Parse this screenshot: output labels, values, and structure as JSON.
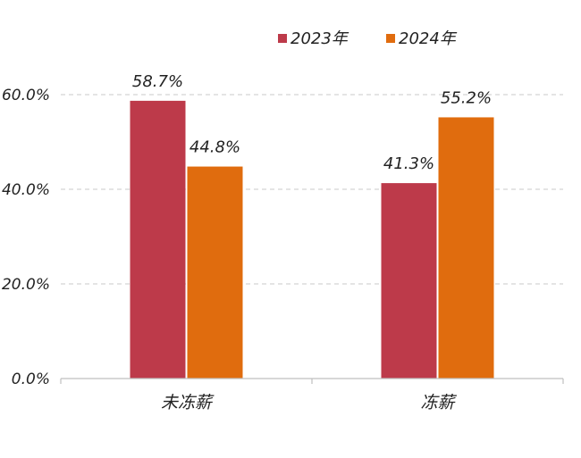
{
  "chart_data": {
    "type": "bar",
    "categories": [
      "未冻薪",
      "冻薪"
    ],
    "series": [
      {
        "name": "2023年",
        "values": [
          58.7,
          41.3
        ],
        "color": "#bd3a4a"
      },
      {
        "name": "2024年",
        "values": [
          44.8,
          55.2
        ],
        "color": "#e06c0e"
      }
    ],
    "data_labels": [
      [
        "58.7%",
        "41.3%"
      ],
      [
        "44.8%",
        "55.2%"
      ]
    ],
    "y_ticks": [
      "0.0%",
      "20.0%",
      "40.0%",
      "60.0%"
    ],
    "y_tick_values": [
      0,
      20,
      40,
      60
    ],
    "ylim": [
      0,
      60
    ],
    "grid": true,
    "legend_position": "top"
  }
}
